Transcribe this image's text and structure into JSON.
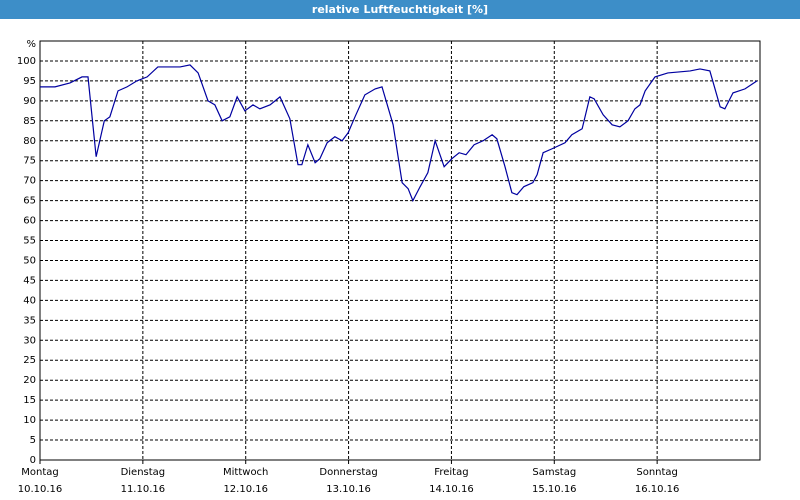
{
  "chart_data": {
    "type": "line",
    "title": "relative Luftfeuchtigkeit [%]",
    "y_label": "%",
    "x": [
      0,
      3.5,
      7,
      9.8,
      11.2,
      13.1,
      15,
      16.3,
      18.2,
      20.3,
      22.6,
      25,
      27.5,
      32.7,
      35,
      36.9,
      39.2,
      40.8,
      42.5,
      44.3,
      46,
      47.8,
      49.7,
      51.3,
      53.7,
      56,
      58.3,
      60.2,
      61.1,
      62.5,
      64.2,
      65.3,
      67,
      68.8,
      70.5,
      71.9,
      73.5,
      75.8,
      78.2,
      79.8,
      82.4,
      84.5,
      85.9,
      87,
      88.7,
      90.5,
      92.2,
      94.3,
      96.1,
      97.8,
      99.4,
      101.3,
      103.4,
      105.5,
      106.6,
      108.5,
      110.1,
      111.3,
      112.9,
      115,
      116,
      117.4,
      119.5,
      122.5,
      124.1,
      126.5,
      128.3,
      129.3,
      131.4,
      133.5,
      135.3,
      137.2,
      138.8,
      140,
      141.2,
      143.5,
      146.5,
      151.7,
      154,
      156.3,
      158.7,
      159.8,
      161.7,
      164.5,
      167.3
    ],
    "series": [
      {
        "name": "relative Luftfeuchtigkeit",
        "color": "#0000a0",
        "values": [
          93.5,
          93.5,
          94.5,
          96,
          96,
          76,
          85,
          86,
          92.5,
          93.5,
          95,
          96,
          98.5,
          98.5,
          99,
          97,
          90,
          89,
          85,
          86,
          91,
          87.5,
          89,
          88,
          89,
          91,
          85.5,
          74,
          74,
          79,
          74.5,
          75.5,
          79.5,
          81,
          80,
          82,
          86,
          91.5,
          93,
          93.5,
          84,
          69.5,
          68,
          65,
          68.5,
          72,
          80,
          73.5,
          75.5,
          77,
          76.5,
          79,
          80,
          81.5,
          80.5,
          73.5,
          67,
          66.5,
          68.5,
          69.5,
          71.5,
          77,
          78,
          79.5,
          81.5,
          83,
          91,
          90.5,
          86.5,
          84,
          83.5,
          85,
          88,
          89,
          92.5,
          96,
          97,
          97.5,
          98,
          97.5,
          88.5,
          88,
          92,
          93,
          95
        ]
      }
    ],
    "xlim": [
      0,
      168
    ],
    "xticks": [
      {
        "value": 0,
        "label": "Montag"
      },
      {
        "value": 24,
        "label": "Dienstag"
      },
      {
        "value": 48,
        "label": "Mittwoch"
      },
      {
        "value": 72,
        "label": "Donnerstag"
      },
      {
        "value": 96,
        "label": "Freitag"
      },
      {
        "value": 120,
        "label": "Samstag"
      },
      {
        "value": 144,
        "label": "Sonntag"
      }
    ],
    "xtick_dates": [
      "10.10.16",
      "11.10.16",
      "12.10.16",
      "13.10.16",
      "14.10.16",
      "15.10.16",
      "16.10.16"
    ],
    "ylim": [
      0,
      105
    ],
    "yticks": [
      0,
      5,
      10,
      15,
      20,
      25,
      30,
      35,
      40,
      45,
      50,
      55,
      60,
      65,
      70,
      75,
      80,
      85,
      90,
      95,
      100
    ],
    "grid": true
  }
}
